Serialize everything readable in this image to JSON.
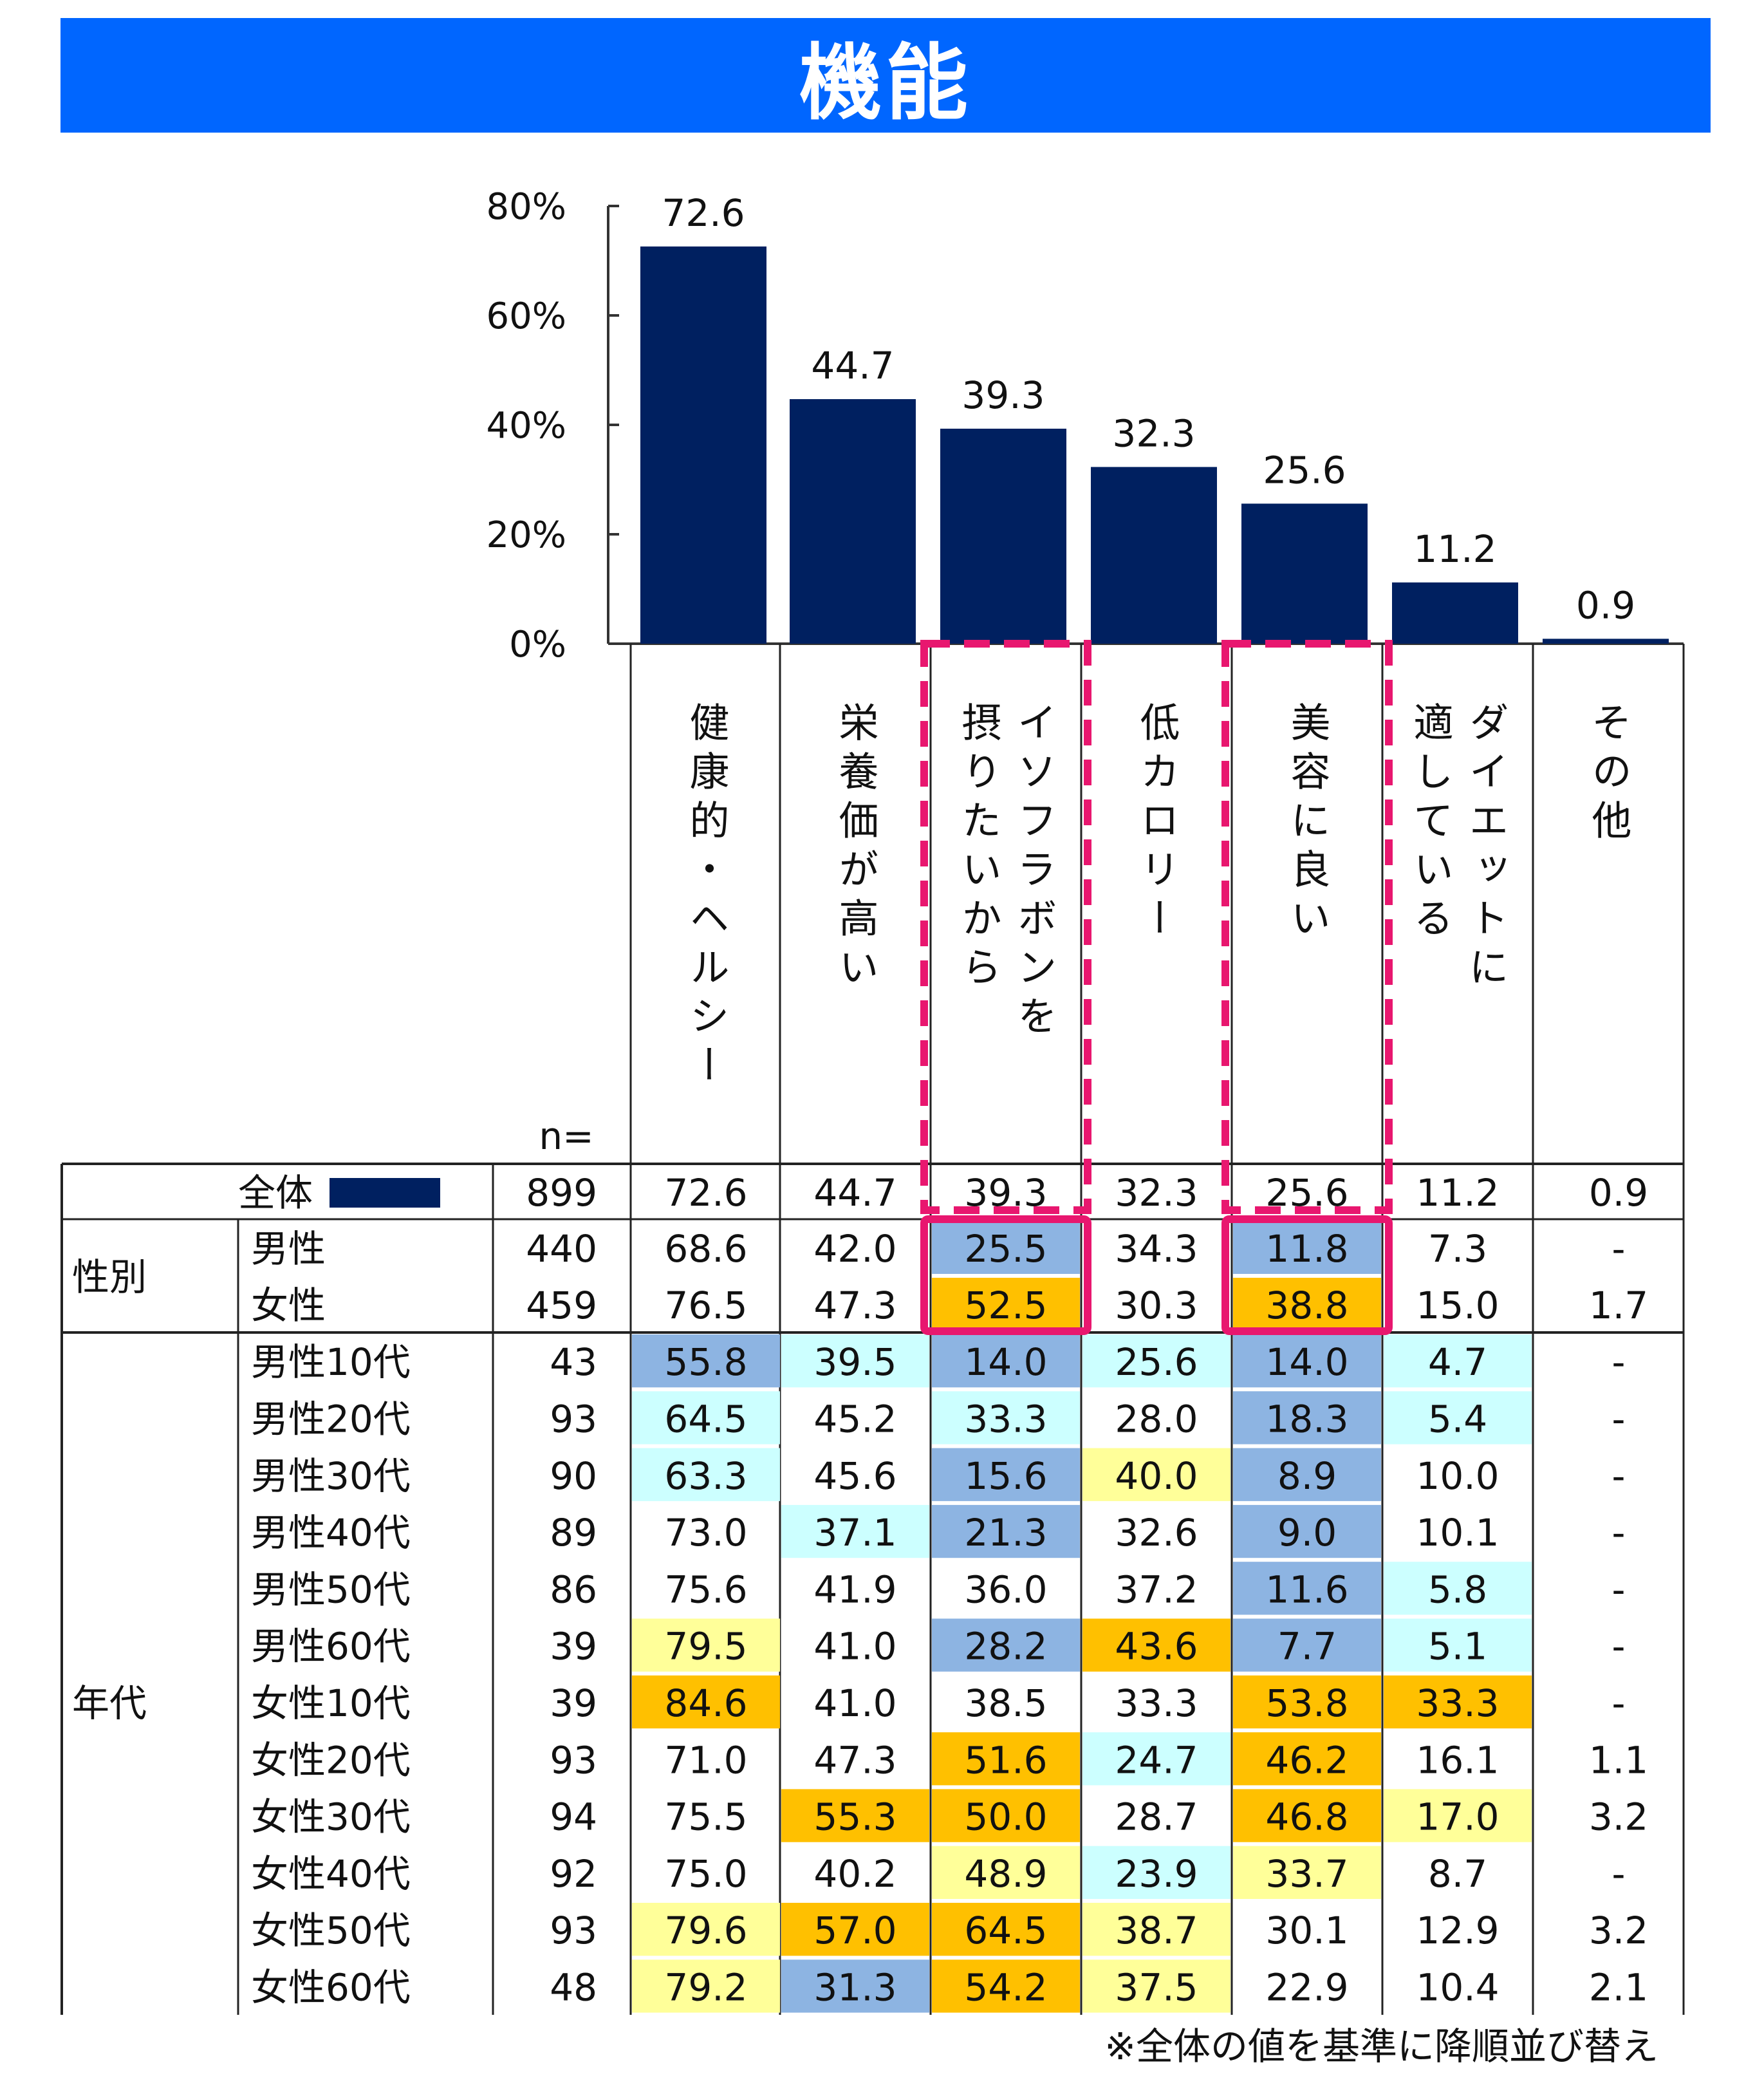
{
  "title": "機能",
  "note": "※全体の値を基準に降順並び替え",
  "chart_data": {
    "type": "bar",
    "categories": [
      [
        "健康的・ヘルシー"
      ],
      [
        "栄養価が高い"
      ],
      [
        "イソフラボンを",
        "摂りたいから"
      ],
      [
        "低カロリー"
      ],
      [
        "美容に良い"
      ],
      [
        "ダイエットに",
        "適している"
      ],
      [
        "その他"
      ]
    ],
    "values": [
      72.6,
      44.7,
      39.3,
      32.3,
      25.6,
      11.2,
      0.9
    ],
    "yticks": [
      "0%",
      "20%",
      "40%",
      "60%",
      "80%"
    ],
    "ylim": [
      0,
      80
    ],
    "bar_color": "#002060",
    "highlight_color": "#e8176f",
    "highlighted_categories": [
      2,
      4
    ]
  },
  "table": {
    "n_header": "n=",
    "rows": [
      {
        "group": "",
        "label": "全体",
        "n": "899",
        "values": [
          "72.6",
          "44.7",
          "39.3",
          "32.3",
          "25.6",
          "11.2",
          "0.9"
        ],
        "colors": [
          "",
          "",
          "",
          "",
          "",
          "",
          ""
        ]
      },
      {
        "group": "性別",
        "label": "男性",
        "n": "440",
        "values": [
          "68.6",
          "42.0",
          "25.5",
          "34.3",
          "11.8",
          "7.3",
          "-"
        ],
        "colors": [
          "",
          "",
          "b",
          "",
          "b",
          "",
          ""
        ]
      },
      {
        "group": "",
        "label": "女性",
        "n": "459",
        "values": [
          "76.5",
          "47.3",
          "52.5",
          "30.3",
          "38.8",
          "15.0",
          "1.7"
        ],
        "colors": [
          "",
          "",
          "o",
          "",
          "o",
          "",
          ""
        ]
      },
      {
        "group": "年代",
        "label": "男性10代",
        "n": "43",
        "values": [
          "55.8",
          "39.5",
          "14.0",
          "25.6",
          "14.0",
          "4.7",
          "-"
        ],
        "colors": [
          "b",
          "c",
          "b",
          "c",
          "b",
          "c",
          ""
        ]
      },
      {
        "group": "",
        "label": "男性20代",
        "n": "93",
        "values": [
          "64.5",
          "45.2",
          "33.3",
          "28.0",
          "18.3",
          "5.4",
          "-"
        ],
        "colors": [
          "c",
          "",
          "c",
          "",
          "b",
          "c",
          ""
        ]
      },
      {
        "group": "",
        "label": "男性30代",
        "n": "90",
        "values": [
          "63.3",
          "45.6",
          "15.6",
          "40.0",
          "8.9",
          "10.0",
          "-"
        ],
        "colors": [
          "c",
          "",
          "b",
          "y",
          "b",
          "",
          ""
        ]
      },
      {
        "group": "",
        "label": "男性40代",
        "n": "89",
        "values": [
          "73.0",
          "37.1",
          "21.3",
          "32.6",
          "9.0",
          "10.1",
          "-"
        ],
        "colors": [
          "",
          "c",
          "b",
          "",
          "b",
          "",
          ""
        ]
      },
      {
        "group": "",
        "label": "男性50代",
        "n": "86",
        "values": [
          "75.6",
          "41.9",
          "36.0",
          "37.2",
          "11.6",
          "5.8",
          "-"
        ],
        "colors": [
          "",
          "",
          "",
          "",
          "b",
          "c",
          ""
        ]
      },
      {
        "group": "",
        "label": "男性60代",
        "n": "39",
        "values": [
          "79.5",
          "41.0",
          "28.2",
          "43.6",
          "7.7",
          "5.1",
          "-"
        ],
        "colors": [
          "y",
          "",
          "b",
          "o",
          "b",
          "c",
          ""
        ]
      },
      {
        "group": "",
        "label": "女性10代",
        "n": "39",
        "values": [
          "84.6",
          "41.0",
          "38.5",
          "33.3",
          "53.8",
          "33.3",
          "-"
        ],
        "colors": [
          "o",
          "",
          "",
          "",
          "o",
          "o",
          ""
        ]
      },
      {
        "group": "",
        "label": "女性20代",
        "n": "93",
        "values": [
          "71.0",
          "47.3",
          "51.6",
          "24.7",
          "46.2",
          "16.1",
          "1.1"
        ],
        "colors": [
          "",
          "",
          "o",
          "c",
          "o",
          "",
          ""
        ]
      },
      {
        "group": "",
        "label": "女性30代",
        "n": "94",
        "values": [
          "75.5",
          "55.3",
          "50.0",
          "28.7",
          "46.8",
          "17.0",
          "3.2"
        ],
        "colors": [
          "",
          "o",
          "o",
          "",
          "o",
          "y",
          ""
        ]
      },
      {
        "group": "",
        "label": "女性40代",
        "n": "92",
        "values": [
          "75.0",
          "40.2",
          "48.9",
          "23.9",
          "33.7",
          "8.7",
          "-"
        ],
        "colors": [
          "",
          "",
          "y",
          "c",
          "y",
          "",
          ""
        ]
      },
      {
        "group": "",
        "label": "女性50代",
        "n": "93",
        "values": [
          "79.6",
          "57.0",
          "64.5",
          "38.7",
          "30.1",
          "12.9",
          "3.2"
        ],
        "colors": [
          "y",
          "o",
          "o",
          "y",
          "",
          "",
          ""
        ]
      },
      {
        "group": "",
        "label": "女性60代",
        "n": "48",
        "values": [
          "79.2",
          "31.3",
          "54.2",
          "37.5",
          "22.9",
          "10.4",
          "2.1"
        ],
        "colors": [
          "y",
          "b",
          "o",
          "y",
          "",
          "",
          ""
        ]
      }
    ],
    "palette": {
      "b": "#8db4e2",
      "c": "#ccffff",
      "y": "#ffff99",
      "o": "#ffc000"
    }
  }
}
